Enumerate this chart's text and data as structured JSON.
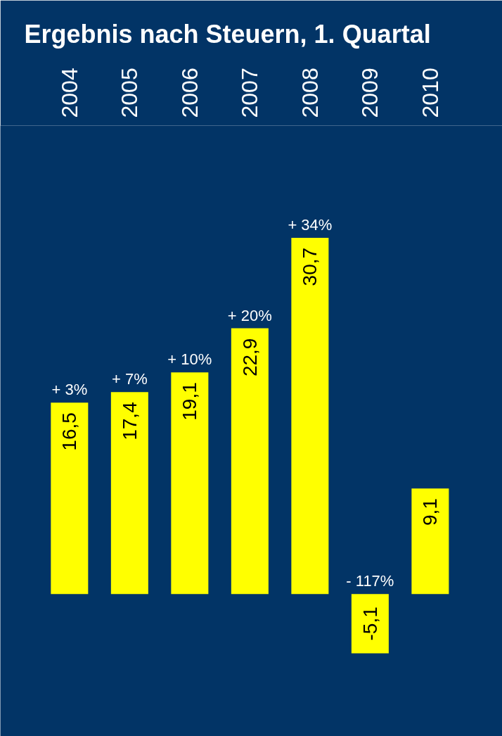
{
  "chart_data": {
    "type": "bar",
    "title": "Ergebnis nach Steuern, 1. Quartal",
    "categories": [
      "2004",
      "2005",
      "2006",
      "2007",
      "2008",
      "2009",
      "2010"
    ],
    "values": [
      16.5,
      17.4,
      19.1,
      22.9,
      30.7,
      -5.1,
      9.1
    ],
    "value_labels": [
      "16,5",
      "17,4",
      "19,1",
      "22,9",
      "30,7",
      "-5,1",
      "9,1"
    ],
    "color": "#ffff00",
    "annotations": [
      {
        "text": "+ 3%",
        "x": "2004",
        "y": 16.5
      },
      {
        "text": "+ 7%",
        "x": "2005",
        "y": 17.4
      },
      {
        "text": "+ 10%",
        "x": "2006",
        "y": 19.1
      },
      {
        "text": "+ 20%",
        "x": "2007",
        "y": 22.9
      },
      {
        "text": "+ 34%",
        "x": "2008",
        "y": 30.7
      },
      {
        "text": "- 117%",
        "x": "2009",
        "y": 0
      }
    ],
    "grid": false
  }
}
